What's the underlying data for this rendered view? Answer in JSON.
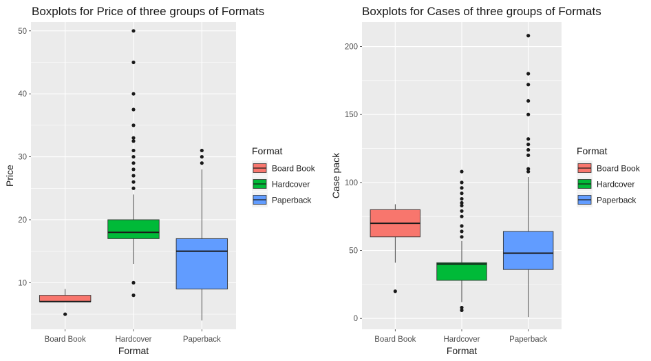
{
  "colors": {
    "Board Book": "#F8766D",
    "Hardcover": "#00BA38",
    "Paperback": "#619CFF",
    "panel": "#EBEBEB",
    "grid": "#FFFFFF",
    "outline": "#333333"
  },
  "chart_data": [
    {
      "type": "boxplot",
      "title": "Boxplots for Price of three groups of Formats",
      "xlabel": "Format",
      "ylabel": "Price",
      "categories": [
        "Board Book",
        "Hardcover",
        "Paperback"
      ],
      "ylim": [
        2.6,
        51.4
      ],
      "yticks": [
        10,
        20,
        30,
        40,
        50
      ],
      "boxes": [
        {
          "category": "Board Book",
          "q1": 7,
          "median": 7,
          "q3": 8,
          "whisker_low": 7,
          "whisker_high": 9,
          "outliers": [
            5
          ]
        },
        {
          "category": "Hardcover",
          "q1": 17,
          "median": 18,
          "q3": 20,
          "whisker_low": 13,
          "whisker_high": 24,
          "outliers": [
            8,
            10,
            25,
            26,
            27,
            28,
            29,
            30,
            31,
            32.5,
            33,
            35,
            37.5,
            40,
            45,
            50
          ]
        },
        {
          "category": "Paperback",
          "q1": 9,
          "median": 15,
          "q3": 17,
          "whisker_low": 4,
          "whisker_high": 28,
          "outliers": [
            29,
            30,
            31
          ]
        }
      ],
      "legend": {
        "title": "Format",
        "entries": [
          "Board Book",
          "Hardcover",
          "Paperback"
        ],
        "position": "right"
      },
      "grid": true
    },
    {
      "type": "boxplot",
      "title": "Boxplots for Cases of three groups of Formats",
      "xlabel": "Format",
      "ylabel": "Case pack",
      "categories": [
        "Board Book",
        "Hardcover",
        "Paperback"
      ],
      "ylim": [
        -8,
        218
      ],
      "yticks": [
        0,
        50,
        100,
        150,
        200
      ],
      "boxes": [
        {
          "category": "Board Book",
          "q1": 60,
          "median": 70,
          "q3": 80,
          "whisker_low": 41,
          "whisker_high": 84,
          "outliers": [
            20
          ]
        },
        {
          "category": "Hardcover",
          "q1": 28,
          "median": 40,
          "q3": 41,
          "whisker_low": 12,
          "whisker_high": 57,
          "outliers": [
            6,
            8,
            60,
            64,
            68,
            75,
            79,
            83,
            85,
            88,
            92,
            96,
            100,
            108
          ]
        },
        {
          "category": "Paperback",
          "q1": 36,
          "median": 48,
          "q3": 64,
          "whisker_low": 1,
          "whisker_high": 104,
          "outliers": [
            108,
            110,
            120,
            124,
            128,
            132,
            150,
            160,
            172,
            180,
            208
          ]
        }
      ],
      "legend": {
        "title": "Format",
        "entries": [
          "Board Book",
          "Hardcover",
          "Paperback"
        ],
        "position": "right"
      },
      "grid": true
    }
  ]
}
